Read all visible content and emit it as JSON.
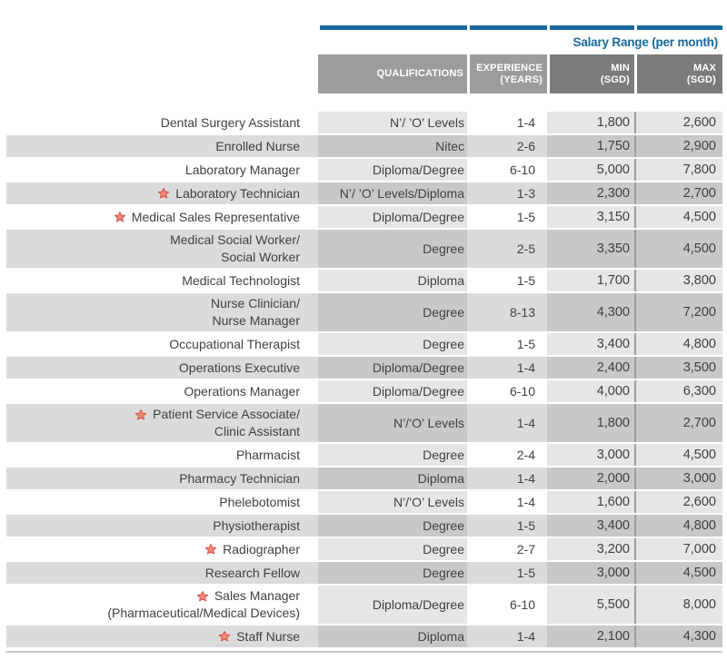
{
  "colors": {
    "accent_blue": "#17689b",
    "header_gray_light": "#9c9c9c",
    "header_gray_dark": "#7b7b7b",
    "zebra_gray": "#dbdbdb",
    "tint_light": "#e6e6e6",
    "tint_dark": "#c8c8c8",
    "divider_gray": "#9f9f9f",
    "bottom_rule_gray": "#c9c9c9",
    "star_fill": "#f0897c",
    "star_stroke": "#d6503f",
    "body_text": "#414042"
  },
  "icons": {
    "star": {
      "name": "star-icon",
      "glyph": "★"
    }
  },
  "table": {
    "title": "Salary Range (per month)",
    "columns": {
      "qualifications": "QUALIFICATIONS",
      "experience_line1": "EXPERIENCE",
      "experience_line2": "(YEARS)",
      "min_line1": "MIN",
      "min_line2": "(SGD)",
      "max_line1": "MAX",
      "max_line2": "(SGD)"
    },
    "rows": [
      {
        "job": [
          "Dental Surgery Assistant"
        ],
        "star": false,
        "qual": "N’/ ’O’ Levels",
        "exp": "1-4",
        "min": "1,800",
        "max": "2,600"
      },
      {
        "job": [
          "Enrolled Nurse"
        ],
        "star": false,
        "qual": "Nitec",
        "exp": "2-6",
        "min": "1,750",
        "max": "2,900"
      },
      {
        "job": [
          "Laboratory Manager"
        ],
        "star": false,
        "qual": "Diploma/Degree",
        "exp": "6-10",
        "min": "5,000",
        "max": "7,800"
      },
      {
        "job": [
          "Laboratory Technician"
        ],
        "star": true,
        "qual": "N’/ ’O’ Levels/Diploma",
        "exp": "1-3",
        "min": "2,300",
        "max": "2,700"
      },
      {
        "job": [
          "Medical Sales Representative"
        ],
        "star": true,
        "qual": "Diploma/Degree",
        "exp": "1-5",
        "min": "3,150",
        "max": "4,500"
      },
      {
        "job": [
          "Medical Social Worker/",
          "Social Worker"
        ],
        "star": false,
        "qual": "Degree",
        "exp": "2-5",
        "min": "3,350",
        "max": "4,500"
      },
      {
        "job": [
          "Medical Technologist"
        ],
        "star": false,
        "qual": "Diploma",
        "exp": "1-5",
        "min": "1,700",
        "max": "3,800"
      },
      {
        "job": [
          "Nurse Clinician/",
          "Nurse Manager"
        ],
        "star": false,
        "qual": "Degree",
        "exp": "8-13",
        "min": "4,300",
        "max": "7,200"
      },
      {
        "job": [
          "Occupational Therapist"
        ],
        "star": false,
        "qual": "Degree",
        "exp": "1-5",
        "min": "3,400",
        "max": "4,800"
      },
      {
        "job": [
          "Operations Executive"
        ],
        "star": false,
        "qual": "Diploma/Degree",
        "exp": "1-4",
        "min": "2,400",
        "max": "3,500"
      },
      {
        "job": [
          "Operations Manager"
        ],
        "star": false,
        "qual": "Diploma/Degree",
        "exp": "6-10",
        "min": "4,000",
        "max": "6,300"
      },
      {
        "job": [
          "Patient Service Associate/",
          "Clinic Assistant"
        ],
        "star": true,
        "qual": "N’/’O’ Levels",
        "exp": "1-4",
        "min": "1,800",
        "max": "2,700"
      },
      {
        "job": [
          "Pharmacist"
        ],
        "star": false,
        "qual": "Degree",
        "exp": "2-4",
        "min": "3,000",
        "max": "4,500"
      },
      {
        "job": [
          "Pharmacy Technician"
        ],
        "star": false,
        "qual": "Diploma",
        "exp": "1-4",
        "min": "2,000",
        "max": "3,000"
      },
      {
        "job": [
          "Phelebotomist"
        ],
        "star": false,
        "qual": "N’/’O’ Levels",
        "exp": "1-4",
        "min": "1,600",
        "max": "2,600"
      },
      {
        "job": [
          "Physiotherapist"
        ],
        "star": false,
        "qual": "Degree",
        "exp": "1-5",
        "min": "3,400",
        "max": "4,800"
      },
      {
        "job": [
          "Radiographer"
        ],
        "star": true,
        "qual": "Degree",
        "exp": "2-7",
        "min": "3,200",
        "max": "7,000"
      },
      {
        "job": [
          "Research Fellow"
        ],
        "star": false,
        "qual": "Degree",
        "exp": "1-5",
        "min": "3,000",
        "max": "4,500"
      },
      {
        "job": [
          "Sales Manager",
          "(Pharmaceutical/Medical Devices)"
        ],
        "star": true,
        "qual": "Diploma/Degree",
        "exp": "6-10",
        "min": "5,500",
        "max": "8,000"
      },
      {
        "job": [
          "Staff Nurse"
        ],
        "star": true,
        "qual": "Diploma",
        "exp": "1-4",
        "min": "2,100",
        "max": "4,300"
      }
    ]
  }
}
